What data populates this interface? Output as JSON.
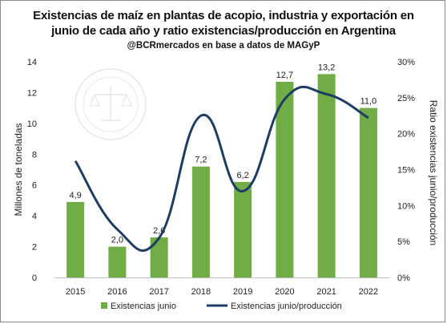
{
  "chart_data": {
    "type": "bar+line",
    "title": "Existencias de maíz en plantas de acopio, industria y exportación en",
    "title_line2": "junio de cada año y ratio existencias/producción en Argentina",
    "subtitle": "@BCRmercados en base a datos de MAGyP",
    "categories": [
      "2015",
      "2016",
      "2017",
      "2018",
      "2019",
      "2020",
      "2021",
      "2022"
    ],
    "series": [
      {
        "name": "Existencias junio",
        "type": "bar",
        "axis": "left",
        "color": "#70ad47",
        "values": [
          4.9,
          2.0,
          2.6,
          7.2,
          6.2,
          12.7,
          13.2,
          11.0
        ],
        "labels": [
          "4,9",
          "2,0",
          "2,6",
          "7,2",
          "6,2",
          "12,7",
          "13,2",
          "11,0"
        ]
      },
      {
        "name": "Existencias junio/producción",
        "type": "line",
        "axis": "right",
        "color": "#1f3d63",
        "values": [
          16.2,
          6.7,
          5.5,
          22.5,
          12.0,
          24.8,
          25.5,
          22.2
        ]
      }
    ],
    "ylabel": "Millones de toneladas",
    "ylim": [
      0,
      14
    ],
    "yticks": [
      "0",
      "2",
      "4",
      "6",
      "8",
      "10",
      "12",
      "14"
    ],
    "y2label": "Ratio existencias junio/producción",
    "y2lim": [
      0,
      30
    ],
    "y2ticks": [
      "0%",
      "5%",
      "10%",
      "15%",
      "20%",
      "25%",
      "30%"
    ],
    "grid": false,
    "legend_position": "bottom"
  }
}
